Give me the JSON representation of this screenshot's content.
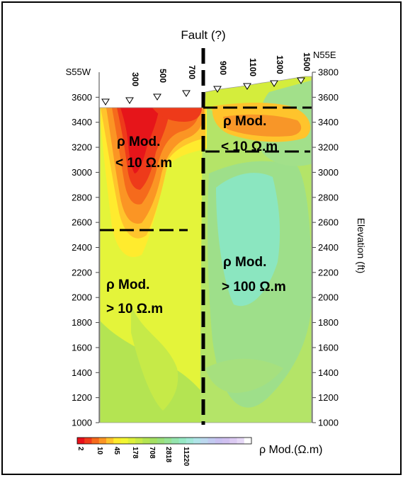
{
  "chart_data": {
    "type": "heatmap",
    "title": "Fault (?)",
    "ylabel": "Elevation (ft)",
    "ylim": [
      1000,
      3800
    ],
    "y_ticks": [
      1000,
      1200,
      1400,
      1600,
      1800,
      2000,
      2200,
      2400,
      2600,
      2800,
      3000,
      3200,
      3400,
      3600,
      3800
    ],
    "left_end_label": "S55W",
    "right_end_label": "N55E",
    "stations": [
      "300",
      "500",
      "700",
      "900",
      "1100",
      "1300",
      "1500"
    ],
    "zones": [
      {
        "line1": "ρ Mod.",
        "line2": "< 10 Ω.m"
      },
      {
        "line1": "ρ Mod.",
        "line2": "< 10 Ω.m"
      },
      {
        "line1": "ρ Mod.",
        "line2": "> 10 Ω.m"
      },
      {
        "line1": "ρ Mod.",
        "line2": "> 100 Ω.m"
      }
    ],
    "colorbar": {
      "label": "ρ Mod.(Ω.m)",
      "tick_labels": [
        "2",
        "10",
        "45",
        "178",
        "708",
        "2818",
        "11220"
      ],
      "colors": [
        "#e8101a",
        "#f03a1a",
        "#f56a1c",
        "#fb9524",
        "#ffc42c",
        "#ffeb2e",
        "#f2f632",
        "#ddf03a",
        "#c8ea48",
        "#b4e452",
        "#a4e062",
        "#9ae07a",
        "#96e294",
        "#94e4ae",
        "#96e8c4",
        "#a2e8d8",
        "#b0e4e8",
        "#bcd8ee",
        "#c2caf0",
        "#c8c0f0",
        "#d0c0f0",
        "#dccaf2",
        "#e6d8f6",
        "#ffffff"
      ]
    },
    "colors": {
      "background": "#e6f53c",
      "conductor_core": "#e8101a",
      "resistive_core": "#8be6c0"
    }
  }
}
